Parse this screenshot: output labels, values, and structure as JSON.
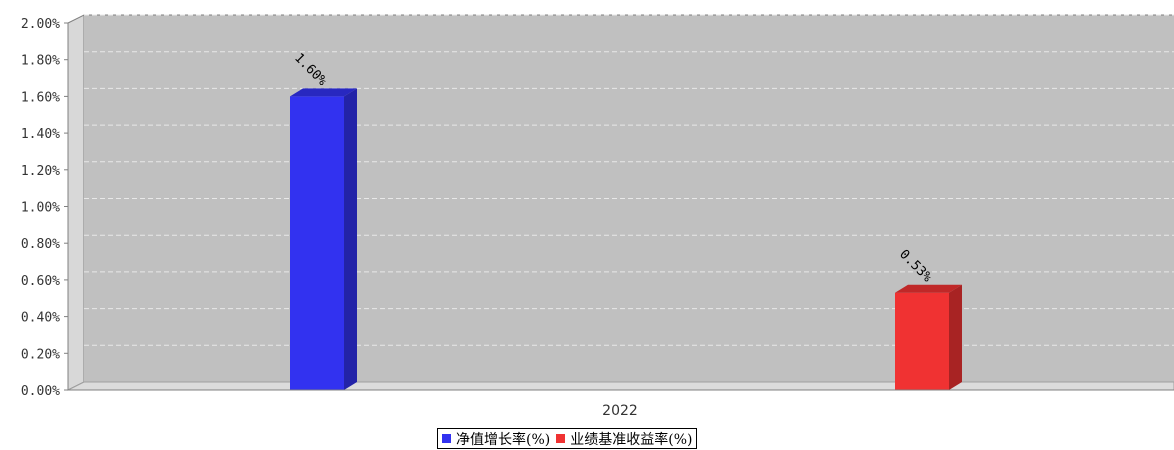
{
  "chart_data": {
    "type": "bar",
    "categories": [
      "2022"
    ],
    "series": [
      {
        "name": "净值增长率(%)",
        "values": [
          1.6
        ],
        "label": "1.60%",
        "color": "#3232f0"
      },
      {
        "name": "业绩基准收益率(%)",
        "values": [
          0.53
        ],
        "label": "0.53%",
        "color": "#f03232"
      }
    ],
    "ylim": [
      0,
      2.0
    ],
    "yticks": [
      "0.00%",
      "0.20%",
      "0.40%",
      "0.60%",
      "0.80%",
      "1.00%",
      "1.20%",
      "1.40%",
      "1.60%",
      "1.80%",
      "2.00%"
    ],
    "grid": true,
    "legend_position": "bottom",
    "plot_background": "#c0c0c0"
  }
}
